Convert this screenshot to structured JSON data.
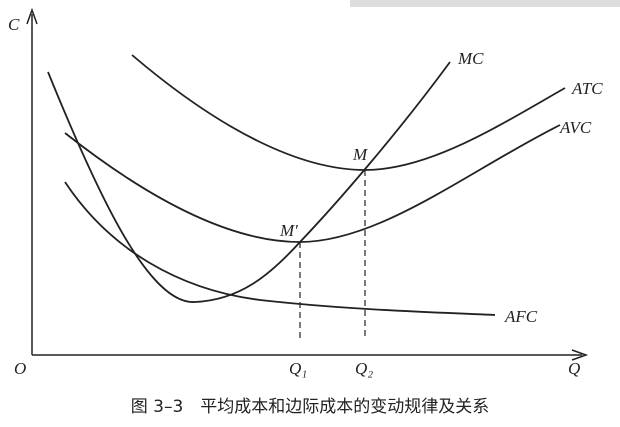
{
  "axes": {
    "y_label": "C",
    "x_label": "Q",
    "origin": "O"
  },
  "curves": {
    "mc": "MC",
    "atc": "ATC",
    "avc": "AVC",
    "afc": "AFC"
  },
  "points": {
    "m": "M",
    "m_prime": "M′"
  },
  "quantities": {
    "q1": "Q₁",
    "q2": "Q₂"
  },
  "caption": "图 3–3　平均成本和边际成本的变动规律及关系"
}
